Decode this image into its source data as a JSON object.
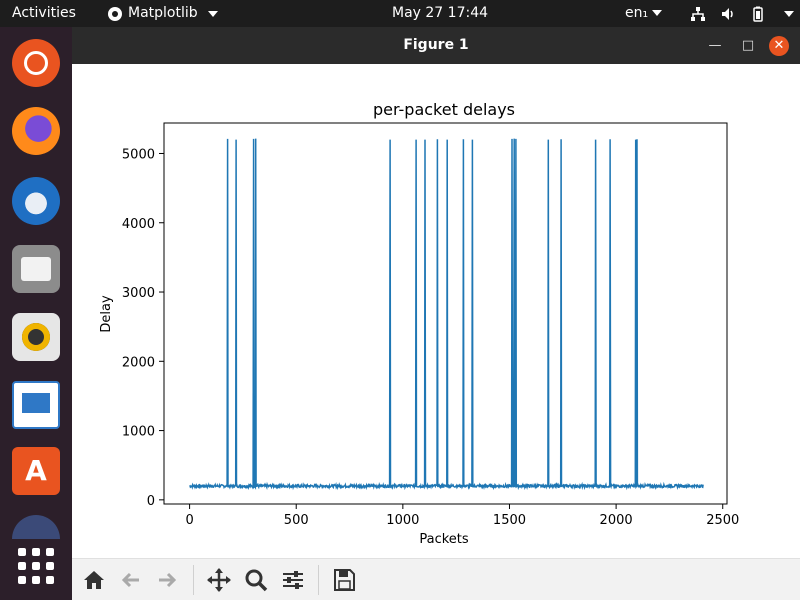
{
  "topbar": {
    "activities": "Activities",
    "app_name": "Matplotlib",
    "clock": "May 27  17:44",
    "language": "en₁"
  },
  "dock": {
    "items": [
      "Ubuntu Software",
      "Firefox",
      "Thunderbird",
      "Files",
      "Rhythmbox",
      "LibreOffice Writer",
      "Ubuntu Software Center",
      "App",
      "Show Applications"
    ]
  },
  "window": {
    "title": "Figure 1"
  },
  "toolbar": {
    "tools": [
      "home",
      "back",
      "forward",
      "pan",
      "zoom",
      "configure-subplots",
      "save"
    ]
  },
  "chart_data": {
    "type": "line",
    "title": "per-packet delays",
    "xlabel": "Packets",
    "ylabel": "Delay",
    "xlim": [
      -120,
      2520
    ],
    "ylim": [
      -60,
      5440
    ],
    "xticks": [
      0,
      500,
      1000,
      1500,
      2000,
      2500
    ],
    "yticks": [
      0,
      1000,
      2000,
      3000,
      4000,
      5000
    ],
    "color": "#1f77b4",
    "baseline": 200,
    "n_packets": 2410,
    "spikes": [
      {
        "x": 178,
        "y": 5210
      },
      {
        "x": 218,
        "y": 5200
      },
      {
        "x": 300,
        "y": 5210
      },
      {
        "x": 310,
        "y": 5215
      },
      {
        "x": 940,
        "y": 5200
      },
      {
        "x": 1062,
        "y": 5200
      },
      {
        "x": 1105,
        "y": 5200
      },
      {
        "x": 1162,
        "y": 5205
      },
      {
        "x": 1208,
        "y": 5200
      },
      {
        "x": 1285,
        "y": 5205
      },
      {
        "x": 1327,
        "y": 5200
      },
      {
        "x": 1512,
        "y": 5210
      },
      {
        "x": 1522,
        "y": 5215
      },
      {
        "x": 1530,
        "y": 5210
      },
      {
        "x": 1683,
        "y": 5200
      },
      {
        "x": 1742,
        "y": 5205
      },
      {
        "x": 1905,
        "y": 5200
      },
      {
        "x": 1972,
        "y": 5205
      },
      {
        "x": 2092,
        "y": 5200
      },
      {
        "x": 2098,
        "y": 5205
      }
    ]
  }
}
